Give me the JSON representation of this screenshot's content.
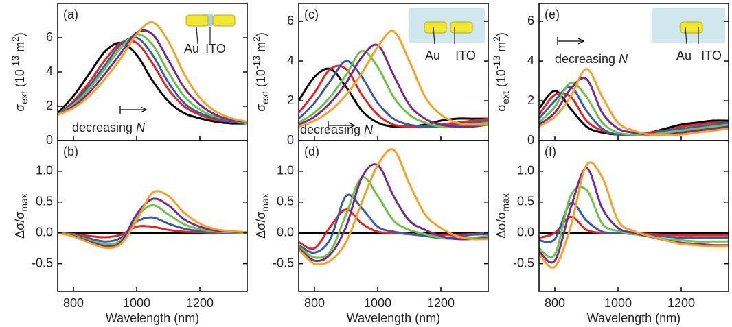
{
  "chart_data": [
    {
      "type": "line",
      "label": "(a)",
      "y_label": [
        "σ",
        "ext",
        "(10",
        "-13",
        " m",
        "2",
        ")"
      ],
      "x": [
        750,
        800,
        850,
        900,
        950,
        1000,
        1050,
        1100,
        1150,
        1200,
        1250,
        1300,
        1350
      ],
      "xlim": [
        750,
        1350
      ],
      "ylim": [
        0,
        8
      ],
      "yticks": [
        0,
        2,
        4,
        6
      ],
      "annotation": [
        "decreasing ",
        "N"
      ],
      "inset": [
        "Au",
        "ITO"
      ],
      "series": [
        {
          "color": "#000000",
          "values": [
            1.6,
            2.6,
            3.9,
            5.2,
            5.7,
            5.0,
            3.5,
            2.3,
            1.6,
            1.3,
            1.1,
            1.0,
            1.0
          ]
        },
        {
          "color": "#e8231f",
          "values": [
            1.5,
            2.3,
            3.4,
            4.7,
            5.7,
            5.7,
            4.5,
            3.0,
            2.0,
            1.5,
            1.2,
            1.1,
            1.0
          ]
        },
        {
          "color": "#3a5ba8",
          "values": [
            1.5,
            2.2,
            3.2,
            4.4,
            5.6,
            6.0,
            5.0,
            3.4,
            2.2,
            1.6,
            1.3,
            1.1,
            1.0
          ]
        },
        {
          "color": "#6cc24a",
          "values": [
            1.5,
            2.1,
            3.0,
            4.2,
            5.4,
            6.2,
            5.6,
            4.0,
            2.6,
            1.8,
            1.4,
            1.2,
            1.0
          ]
        },
        {
          "color": "#7b2a8c",
          "values": [
            1.5,
            2.0,
            2.8,
            3.9,
            5.1,
            6.3,
            6.2,
            4.7,
            3.1,
            2.1,
            1.5,
            1.2,
            1.1
          ]
        },
        {
          "color": "#f7a128",
          "values": [
            1.5,
            1.9,
            2.6,
            3.6,
            4.8,
            6.2,
            6.9,
            5.8,
            3.9,
            2.5,
            1.7,
            1.3,
            1.1
          ]
        }
      ]
    },
    {
      "type": "line",
      "label": "(b)",
      "y_label": [
        "Δσ/σ",
        "max"
      ],
      "x_label": "Wavelength (nm)",
      "x": [
        750,
        800,
        850,
        900,
        950,
        1000,
        1050,
        1100,
        1150,
        1200,
        1250,
        1300,
        1350
      ],
      "xlim": [
        750,
        1350
      ],
      "xticks": [
        800,
        1000,
        1200
      ],
      "ylim": [
        -0.95,
        1.5
      ],
      "yticks": [
        -0.5,
        {
          "value": 0,
          "label": "0.0"
        },
        0.5,
        {
          "value": 1,
          "label": "1.0"
        }
      ],
      "series": [
        {
          "color": "#000000",
          "values": [
            0,
            0,
            0,
            0,
            0,
            0,
            0,
            0,
            0,
            0,
            0,
            0,
            0
          ]
        },
        {
          "color": "#e8231f",
          "values": [
            0,
            -0.02,
            -0.05,
            -0.07,
            -0.03,
            0.1,
            0.1,
            0.05,
            0.02,
            0.01,
            0,
            0,
            0
          ]
        },
        {
          "color": "#3a5ba8",
          "values": [
            0,
            -0.03,
            -0.09,
            -0.14,
            -0.08,
            0.18,
            0.25,
            0.15,
            0.07,
            0.03,
            0.01,
            0,
            0
          ]
        },
        {
          "color": "#6cc24a",
          "values": [
            0,
            -0.04,
            -0.12,
            -0.18,
            -0.12,
            0.26,
            0.45,
            0.3,
            0.14,
            0.06,
            0.02,
            0.01,
            0
          ]
        },
        {
          "color": "#7b2a8c",
          "values": [
            0,
            -0.05,
            -0.14,
            -0.21,
            -0.15,
            0.3,
            0.55,
            0.45,
            0.22,
            0.1,
            0.04,
            0.02,
            0.01
          ]
        },
        {
          "color": "#f7a128",
          "values": [
            0,
            -0.06,
            -0.16,
            -0.24,
            -0.18,
            0.2,
            0.65,
            0.6,
            0.33,
            0.15,
            0.06,
            0.03,
            0.01
          ]
        }
      ]
    },
    {
      "type": "line",
      "label": "(c)",
      "y_label": [
        "σ",
        "ext",
        "(10",
        "-13",
        " m",
        "2",
        ")"
      ],
      "x": [
        750,
        800,
        850,
        900,
        950,
        1000,
        1050,
        1100,
        1150,
        1200,
        1250,
        1300,
        1350
      ],
      "xlim": [
        750,
        1350
      ],
      "ylim": [
        0,
        6.9
      ],
      "yticks": [
        0,
        2,
        4,
        6
      ],
      "annotation": [
        "decreasing ",
        "N"
      ],
      "inset": [
        "Au",
        "ITO"
      ],
      "series": [
        {
          "color": "#000000",
          "values": [
            2.0,
            3.2,
            3.6,
            2.7,
            1.5,
            0.9,
            0.7,
            0.7,
            0.8,
            1.0,
            1.1,
            1.1,
            1.1
          ]
        },
        {
          "color": "#e8231f",
          "values": [
            1.4,
            2.4,
            3.6,
            3.6,
            2.3,
            1.3,
            0.8,
            0.7,
            0.7,
            0.8,
            0.9,
            1.0,
            1.1
          ]
        },
        {
          "color": "#3a5ba8",
          "values": [
            1.1,
            1.9,
            3.0,
            4.0,
            3.2,
            1.9,
            1.1,
            0.8,
            0.7,
            0.7,
            0.8,
            0.9,
            1.0
          ]
        },
        {
          "color": "#6cc24a",
          "values": [
            0.9,
            1.4,
            2.2,
            3.3,
            4.5,
            3.7,
            2.2,
            1.3,
            0.9,
            0.7,
            0.7,
            0.8,
            0.9
          ]
        },
        {
          "color": "#7b2a8c",
          "values": [
            0.8,
            1.2,
            1.9,
            2.9,
            4.2,
            4.8,
            3.3,
            1.8,
            1.1,
            0.8,
            0.7,
            0.7,
            0.8
          ]
        },
        {
          "color": "#f7a128",
          "values": [
            0.7,
            1.0,
            1.5,
            2.3,
            3.4,
            4.7,
            5.5,
            4.0,
            2.2,
            1.3,
            0.9,
            0.8,
            0.8
          ]
        }
      ]
    },
    {
      "type": "line",
      "label": "(d)",
      "y_label": [
        "Δσ/σ",
        "max"
      ],
      "x_label": "Wavelength (nm)",
      "x": [
        750,
        800,
        850,
        900,
        950,
        1000,
        1050,
        1100,
        1150,
        1200,
        1250,
        1300,
        1350
      ],
      "xlim": [
        750,
        1350
      ],
      "xticks": [
        800,
        1000,
        1200
      ],
      "ylim": [
        -0.95,
        1.5
      ],
      "yticks": [
        -0.5,
        {
          "value": 0,
          "label": "0.0"
        },
        0.5,
        {
          "value": 1,
          "label": "1.0"
        }
      ],
      "series": [
        {
          "color": "#000000",
          "values": [
            0,
            0,
            0,
            0,
            0,
            0,
            0,
            0,
            0,
            0,
            0,
            0,
            0
          ]
        },
        {
          "color": "#e8231f",
          "values": [
            -0.15,
            -0.25,
            0.1,
            0.38,
            0.15,
            0.02,
            0,
            -0.02,
            -0.03,
            -0.03,
            -0.03,
            -0.02,
            0
          ]
        },
        {
          "color": "#3a5ba8",
          "values": [
            -0.2,
            -0.32,
            -0.1,
            0.6,
            0.4,
            0.1,
            0.02,
            -0.02,
            -0.05,
            -0.08,
            -0.06,
            -0.03,
            -0.02
          ]
        },
        {
          "color": "#6cc24a",
          "values": [
            -0.22,
            -0.4,
            -0.3,
            0.3,
            0.9,
            0.6,
            0.2,
            0.05,
            -0.02,
            -0.08,
            -0.1,
            -0.08,
            -0.05
          ]
        },
        {
          "color": "#7b2a8c",
          "values": [
            -0.25,
            -0.45,
            -0.35,
            0.1,
            0.9,
            1.1,
            0.6,
            0.2,
            0.05,
            -0.05,
            -0.1,
            -0.1,
            -0.08
          ]
        },
        {
          "color": "#f7a128",
          "values": [
            -0.27,
            -0.5,
            -0.45,
            -0.15,
            0.5,
            1.1,
            1.35,
            0.8,
            0.3,
            0.08,
            -0.05,
            -0.1,
            -0.1
          ]
        }
      ]
    },
    {
      "type": "line",
      "label": "(e)",
      "y_label": [
        "σ",
        "ext",
        "(10",
        "-13",
        " m",
        "2",
        ")"
      ],
      "x": [
        750,
        800,
        850,
        900,
        950,
        1000,
        1050,
        1100,
        1150,
        1200,
        1250,
        1300,
        1350
      ],
      "xlim": [
        750,
        1350
      ],
      "ylim": [
        0,
        6.9
      ],
      "yticks": [
        0,
        2,
        4,
        6
      ],
      "annotation": [
        "decreasing ",
        "N"
      ],
      "inset": [
        "Au",
        "ITO"
      ],
      "series": [
        {
          "color": "#000000",
          "values": [
            1.6,
            2.5,
            1.6,
            0.7,
            0.4,
            0.3,
            0.3,
            0.4,
            0.6,
            0.8,
            0.9,
            1.0,
            1.0
          ]
        },
        {
          "color": "#e8231f",
          "values": [
            1.3,
            2.3,
            2.2,
            1.0,
            0.5,
            0.3,
            0.3,
            0.4,
            0.5,
            0.7,
            0.8,
            0.9,
            0.9
          ]
        },
        {
          "color": "#3a5ba8",
          "values": [
            1.1,
            2.0,
            2.7,
            1.5,
            0.6,
            0.3,
            0.3,
            0.3,
            0.5,
            0.6,
            0.7,
            0.8,
            0.9
          ]
        },
        {
          "color": "#6cc24a",
          "values": [
            0.9,
            1.7,
            2.9,
            2.2,
            0.9,
            0.4,
            0.3,
            0.3,
            0.4,
            0.5,
            0.6,
            0.7,
            0.8
          ]
        },
        {
          "color": "#7b2a8c",
          "values": [
            0.8,
            1.4,
            2.6,
            3.1,
            1.4,
            0.6,
            0.4,
            0.3,
            0.3,
            0.4,
            0.5,
            0.6,
            0.7
          ]
        },
        {
          "color": "#f7a128",
          "values": [
            0.7,
            1.2,
            2.2,
            3.6,
            2.2,
            0.9,
            0.5,
            0.3,
            0.3,
            0.3,
            0.4,
            0.5,
            0.6
          ]
        }
      ]
    },
    {
      "type": "line",
      "label": "(f)",
      "y_label": [
        "Δσ/σ",
        "max"
      ],
      "x_label": "Wavelength (nm)",
      "x": [
        750,
        800,
        850,
        900,
        950,
        1000,
        1050,
        1100,
        1150,
        1200,
        1250,
        1300,
        1350
      ],
      "xlim": [
        750,
        1350
      ],
      "xticks": [
        800,
        1000,
        1200
      ],
      "ylim": [
        -0.95,
        1.5
      ],
      "yticks": [
        -0.5,
        {
          "value": 0,
          "label": "0.0"
        },
        0.5,
        {
          "value": 1,
          "label": "1.0"
        }
      ],
      "series": [
        {
          "color": "#000000",
          "values": [
            0,
            0,
            0,
            0,
            0,
            0,
            0,
            0,
            0,
            0,
            0,
            0,
            0
          ]
        },
        {
          "color": "#e8231f",
          "values": [
            -0.08,
            0.0,
            0.26,
            0.05,
            0,
            0,
            0,
            -0.02,
            -0.03,
            -0.04,
            -0.04,
            -0.04,
            -0.04
          ]
        },
        {
          "color": "#3a5ba8",
          "values": [
            -0.12,
            -0.1,
            0.48,
            0.2,
            0.02,
            0,
            -0.02,
            -0.04,
            -0.06,
            -0.08,
            -0.08,
            -0.08,
            -0.08
          ]
        },
        {
          "color": "#6cc24a",
          "values": [
            -0.25,
            -0.35,
            0.6,
            0.7,
            0.15,
            0.03,
            -0.02,
            -0.06,
            -0.1,
            -0.12,
            -0.14,
            -0.14,
            -0.14
          ]
        },
        {
          "color": "#7b2a8c",
          "values": [
            -0.3,
            -0.45,
            0.4,
            1.05,
            0.4,
            0.08,
            0,
            -0.06,
            -0.12,
            -0.16,
            -0.18,
            -0.2,
            -0.2
          ]
        },
        {
          "color": "#f7a128",
          "values": [
            -0.35,
            -0.55,
            0.1,
            1.1,
            0.9,
            0.2,
            0.03,
            -0.05,
            -0.12,
            -0.18,
            -0.2,
            -0.22,
            -0.22
          ]
        }
      ]
    }
  ]
}
